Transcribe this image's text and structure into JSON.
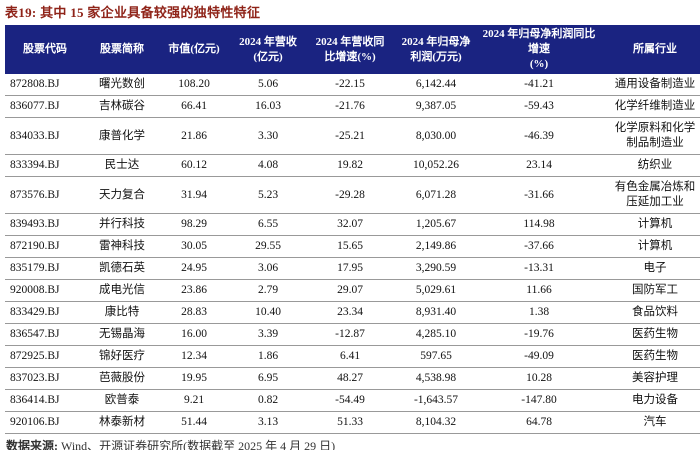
{
  "title": "表19: 其中 15 家企业具备较强的独特性特征",
  "table": {
    "columns": [
      {
        "key": "stock-code",
        "label": "股票代码"
      },
      {
        "key": "stock-name",
        "label": "股票简称"
      },
      {
        "key": "market-cap",
        "label": "市值(亿元)"
      },
      {
        "key": "revenue-2024",
        "label": "2024 年营收\n(亿元)"
      },
      {
        "key": "revenue-yoy",
        "label": "2024 年营收同\n比增速(%)"
      },
      {
        "key": "net-profit-2024",
        "label": "2024 年归母净\n利润(万元)"
      },
      {
        "key": "net-profit-yoy",
        "label": "2024 年归母净利润同比增速\n(%)"
      },
      {
        "key": "industry",
        "label": "所属行业"
      }
    ],
    "rows": [
      [
        "872808.BJ",
        "曙光数创",
        "108.20",
        "5.06",
        "-22.15",
        "6,142.44",
        "-41.21",
        "通用设备制造业"
      ],
      [
        "836077.BJ",
        "吉林碳谷",
        "66.41",
        "16.03",
        "-21.76",
        "9,387.05",
        "-59.43",
        "化学纤维制造业"
      ],
      [
        "834033.BJ",
        "康普化学",
        "21.86",
        "3.30",
        "-25.21",
        "8,030.00",
        "-46.39",
        "化学原料和化学\n制品制造业"
      ],
      [
        "833394.BJ",
        "民士达",
        "60.12",
        "4.08",
        "19.82",
        "10,052.26",
        "23.14",
        "纺织业"
      ],
      [
        "873576.BJ",
        "天力复合",
        "31.94",
        "5.23",
        "-29.28",
        "6,071.28",
        "-31.66",
        "有色金属冶炼和\n压延加工业"
      ],
      [
        "839493.BJ",
        "并行科技",
        "98.29",
        "6.55",
        "32.07",
        "1,205.67",
        "114.98",
        "计算机"
      ],
      [
        "872190.BJ",
        "雷神科技",
        "30.05",
        "29.55",
        "15.65",
        "2,149.86",
        "-37.66",
        "计算机"
      ],
      [
        "835179.BJ",
        "凯德石英",
        "24.95",
        "3.06",
        "17.95",
        "3,290.59",
        "-13.31",
        "电子"
      ],
      [
        "920008.BJ",
        "成电光信",
        "23.86",
        "2.79",
        "29.07",
        "5,029.61",
        "11.66",
        "国防军工"
      ],
      [
        "833429.BJ",
        "康比特",
        "28.83",
        "10.40",
        "23.34",
        "8,931.40",
        "1.38",
        "食品饮料"
      ],
      [
        "836547.BJ",
        "无锡晶海",
        "16.00",
        "3.39",
        "-12.87",
        "4,285.10",
        "-19.76",
        "医药生物"
      ],
      [
        "872925.BJ",
        "锦好医疗",
        "12.34",
        "1.86",
        "6.41",
        "597.65",
        "-49.09",
        "医药生物"
      ],
      [
        "837023.BJ",
        "芭薇股份",
        "19.95",
        "6.95",
        "48.27",
        "4,538.98",
        "10.28",
        "美容护理"
      ],
      [
        "836414.BJ",
        "欧普泰",
        "9.21",
        "0.82",
        "-54.49",
        "-1,643.57",
        "-147.80",
        "电力设备"
      ],
      [
        "920106.BJ",
        "林泰新材",
        "51.44",
        "3.13",
        "51.33",
        "8,104.32",
        "64.78",
        "汽车"
      ]
    ]
  },
  "footer": {
    "label": "数据来源:",
    "text": "Wind、开源证券研究所(数据截至 2025 年 4 月 29 日)"
  },
  "colors": {
    "title_red": "#8f2318",
    "header_navy": "#1a2381",
    "row_border_gray": "#999999"
  }
}
